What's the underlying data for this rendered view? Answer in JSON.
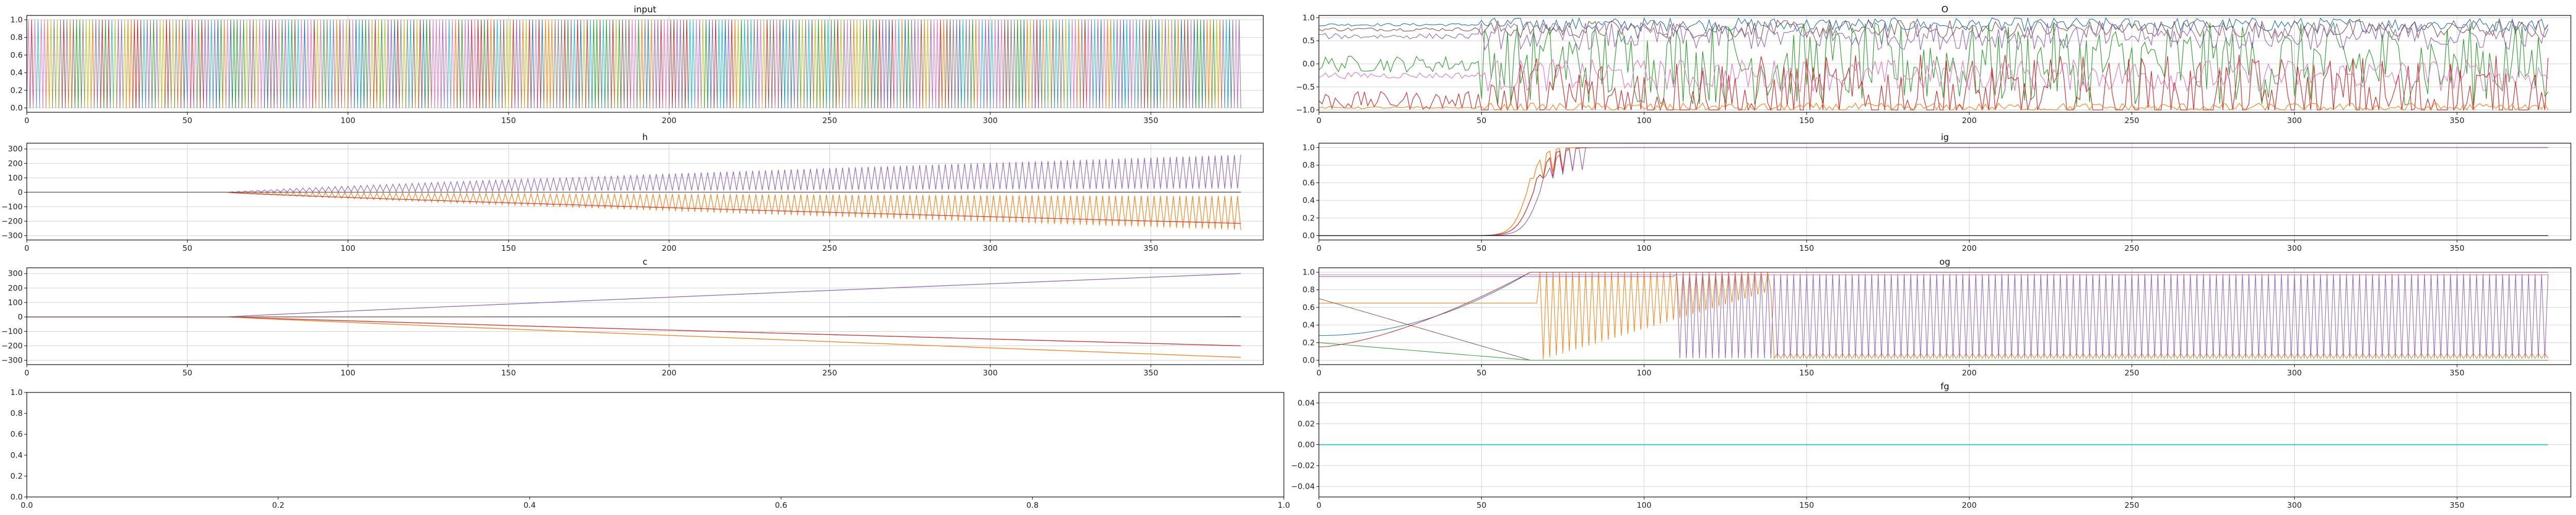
{
  "chart_data": [
    {
      "id": "input",
      "type": "line",
      "title": "input",
      "xlim": [
        0,
        385
      ],
      "ylim": [
        -0.05,
        1.05
      ],
      "xticks": [
        0,
        50,
        100,
        150,
        200,
        250,
        300,
        350
      ],
      "yticks": [
        0.0,
        0.2,
        0.4,
        0.6,
        0.8,
        1.0
      ],
      "tick_labels_x": [
        "0",
        "50",
        "100",
        "150",
        "200",
        "250",
        "300",
        "350"
      ],
      "tick_labels_y": [
        "0.0",
        "0.2",
        "0.4",
        "0.6",
        "0.8",
        "1.0"
      ],
      "grid": true,
      "description": "one-hot switching signals, many colored series toggling between 0 and 1 every step",
      "x_range": [
        0,
        378
      ],
      "series_colors": [
        "#1f77b4",
        "#ff7f0e",
        "#2ca02c",
        "#d62728",
        "#9467bd",
        "#8c564b",
        "#e377c2",
        "#7f7f7f",
        "#bcbd22",
        "#17becf"
      ]
    },
    {
      "id": "o",
      "type": "line",
      "title": "O",
      "xlim": [
        0,
        385
      ],
      "ylim": [
        -1.05,
        1.05
      ],
      "xticks": [
        0,
        50,
        100,
        150,
        200,
        250,
        300,
        350
      ],
      "yticks": [
        -1.0,
        -0.5,
        0.0,
        0.5,
        1.0
      ],
      "tick_labels_x": [
        "0",
        "50",
        "100",
        "150",
        "200",
        "250",
        "300",
        "350"
      ],
      "tick_labels_y": [
        "−1.0",
        "−0.5",
        "0.0",
        "0.5",
        "1.0"
      ],
      "grid": true,
      "x_range": [
        0,
        378
      ],
      "series": [
        {
          "color": "#1f77b4",
          "level": 0.85,
          "amp": 0.15
        },
        {
          "color": "#8c564b",
          "level": 0.75,
          "amp": 0.2
        },
        {
          "color": "#2ca02c",
          "level": 0.0,
          "amp": 0.9
        },
        {
          "color": "#e377c2",
          "level": -0.25,
          "amp": 0.35
        },
        {
          "color": "#d62728",
          "level": -0.8,
          "amp": 1.0
        },
        {
          "color": "#ff7f0e",
          "level": -0.95,
          "amp": 0.1
        },
        {
          "color": "#9467bd",
          "level": 0.6,
          "amp": 0.3
        }
      ]
    },
    {
      "id": "h",
      "type": "line",
      "title": "h",
      "xlim": [
        0,
        385
      ],
      "ylim": [
        -330,
        340
      ],
      "xticks": [
        0,
        50,
        100,
        150,
        200,
        250,
        300,
        350
      ],
      "yticks": [
        -300,
        -200,
        -100,
        0,
        100,
        200,
        300
      ],
      "tick_labels_x": [
        "0",
        "50",
        "100",
        "150",
        "200",
        "250",
        "300",
        "350"
      ],
      "tick_labels_y": [
        "−300",
        "−200",
        "−100",
        "0",
        "100",
        "200",
        "300"
      ],
      "grid": true,
      "x_range": [
        0,
        378
      ],
      "series": [
        {
          "color": "#9467bd",
          "start": 62,
          "end_value": 260,
          "osc": 0.5
        },
        {
          "color": "#ff7f0e",
          "start": 62,
          "end_value": -260,
          "osc": 0.5
        },
        {
          "color": "#d62728",
          "start": 62,
          "end_value": -215,
          "osc": 0.0
        },
        {
          "color": "#1f77b4",
          "start": 62,
          "end_value": 0,
          "osc": 0.0
        },
        {
          "color": "#8c564b",
          "start": 62,
          "end_value": 2,
          "osc": 0.0
        }
      ]
    },
    {
      "id": "ig",
      "type": "line",
      "title": "ig",
      "xlim": [
        0,
        385
      ],
      "ylim": [
        -0.05,
        1.05
      ],
      "xticks": [
        0,
        50,
        100,
        150,
        200,
        250,
        300,
        350
      ],
      "yticks": [
        0.0,
        0.2,
        0.4,
        0.6,
        0.8,
        1.0
      ],
      "tick_labels_x": [
        "0",
        "50",
        "100",
        "150",
        "200",
        "250",
        "300",
        "350"
      ],
      "tick_labels_y": [
        "0.0",
        "0.2",
        "0.4",
        "0.6",
        "0.8",
        "1.0"
      ],
      "grid": true,
      "x_range": [
        0,
        378
      ],
      "series": [
        {
          "color": "#ff7f0e",
          "mid": 64,
          "k": 0.45,
          "final": 1.0
        },
        {
          "color": "#d62728",
          "mid": 66,
          "k": 0.4,
          "final": 1.0
        },
        {
          "color": "#9467bd",
          "mid": 68,
          "k": 0.4,
          "final": 1.0
        },
        {
          "color": "#1f77b4",
          "mid": 0,
          "k": 0,
          "final": 0.0
        },
        {
          "color": "#111111",
          "mid": 0,
          "k": 0,
          "final": 0.0
        }
      ]
    },
    {
      "id": "c",
      "type": "line",
      "title": "c",
      "xlim": [
        0,
        385
      ],
      "ylim": [
        -330,
        340
      ],
      "xticks": [
        0,
        50,
        100,
        150,
        200,
        250,
        300,
        350
      ],
      "yticks": [
        -300,
        -200,
        -100,
        0,
        100,
        200,
        300
      ],
      "tick_labels_x": [
        "0",
        "50",
        "100",
        "150",
        "200",
        "250",
        "300",
        "350"
      ],
      "tick_labels_y": [
        "−300",
        "−200",
        "−100",
        "0",
        "100",
        "200",
        "300"
      ],
      "grid": true,
      "x_range": [
        0,
        378
      ],
      "series": [
        {
          "color": "#9467bd",
          "start": 62,
          "end_value": 300
        },
        {
          "color": "#d62728",
          "start": 62,
          "end_value": -200
        },
        {
          "color": "#ff7f0e",
          "start": 62,
          "end_value": -280
        },
        {
          "color": "#1f77b4",
          "start": 62,
          "end_value": 0
        },
        {
          "color": "#8c564b",
          "start": 62,
          "end_value": 2
        }
      ]
    },
    {
      "id": "og",
      "type": "line",
      "title": "og",
      "xlim": [
        0,
        385
      ],
      "ylim": [
        -0.05,
        1.05
      ],
      "xticks": [
        0,
        50,
        100,
        150,
        200,
        250,
        300,
        350
      ],
      "yticks": [
        0.0,
        0.2,
        0.4,
        0.6,
        0.8,
        1.0
      ],
      "tick_labels_x": [
        "0",
        "50",
        "100",
        "150",
        "200",
        "250",
        "300",
        "350"
      ],
      "tick_labels_y": [
        "0.0",
        "0.2",
        "0.4",
        "0.6",
        "0.8",
        "1.0"
      ],
      "grid": true,
      "x_range": [
        0,
        378
      ],
      "series": [
        {
          "color": "#ff7f0e",
          "kind": "osc_decay"
        },
        {
          "color": "#9467bd",
          "kind": "osc_full"
        },
        {
          "color": "#1f77b4",
          "kind": "rise"
        },
        {
          "color": "#8c564b",
          "kind": "fall"
        },
        {
          "color": "#2ca02c",
          "kind": "fall_low"
        },
        {
          "color": "#d62728",
          "kind": "rise_low"
        },
        {
          "color": "#e377c2",
          "kind": "flat_high"
        }
      ]
    },
    {
      "id": "empty",
      "type": "line",
      "title": "",
      "xlim": [
        0,
        1
      ],
      "ylim": [
        0,
        1
      ],
      "xticks": [
        0.0,
        0.2,
        0.4,
        0.6,
        0.8,
        1.0
      ],
      "yticks": [
        0.0,
        0.2,
        0.4,
        0.6,
        0.8,
        1.0
      ],
      "tick_labels_x": [
        "0.0",
        "0.2",
        "0.4",
        "0.6",
        "0.8",
        "1.0"
      ],
      "tick_labels_y": [
        "0.0",
        "0.2",
        "0.4",
        "0.6",
        "0.8",
        "1.0"
      ],
      "grid": false,
      "series": []
    },
    {
      "id": "fg",
      "type": "line",
      "title": "fg",
      "xlim": [
        0,
        385
      ],
      "ylim": [
        -0.05,
        0.05
      ],
      "xticks": [
        0,
        50,
        100,
        150,
        200,
        250,
        300,
        350
      ],
      "yticks": [
        -0.04,
        -0.02,
        0.0,
        0.02,
        0.04
      ],
      "tick_labels_x": [
        "0",
        "50",
        "100",
        "150",
        "200",
        "250",
        "300",
        "350"
      ],
      "tick_labels_y": [
        "−0.04",
        "−0.02",
        "0.00",
        "0.02",
        "0.04"
      ],
      "grid": true,
      "x_range": [
        0,
        378
      ],
      "series": [
        {
          "color": "#17becf",
          "value": 0.0
        }
      ]
    }
  ]
}
